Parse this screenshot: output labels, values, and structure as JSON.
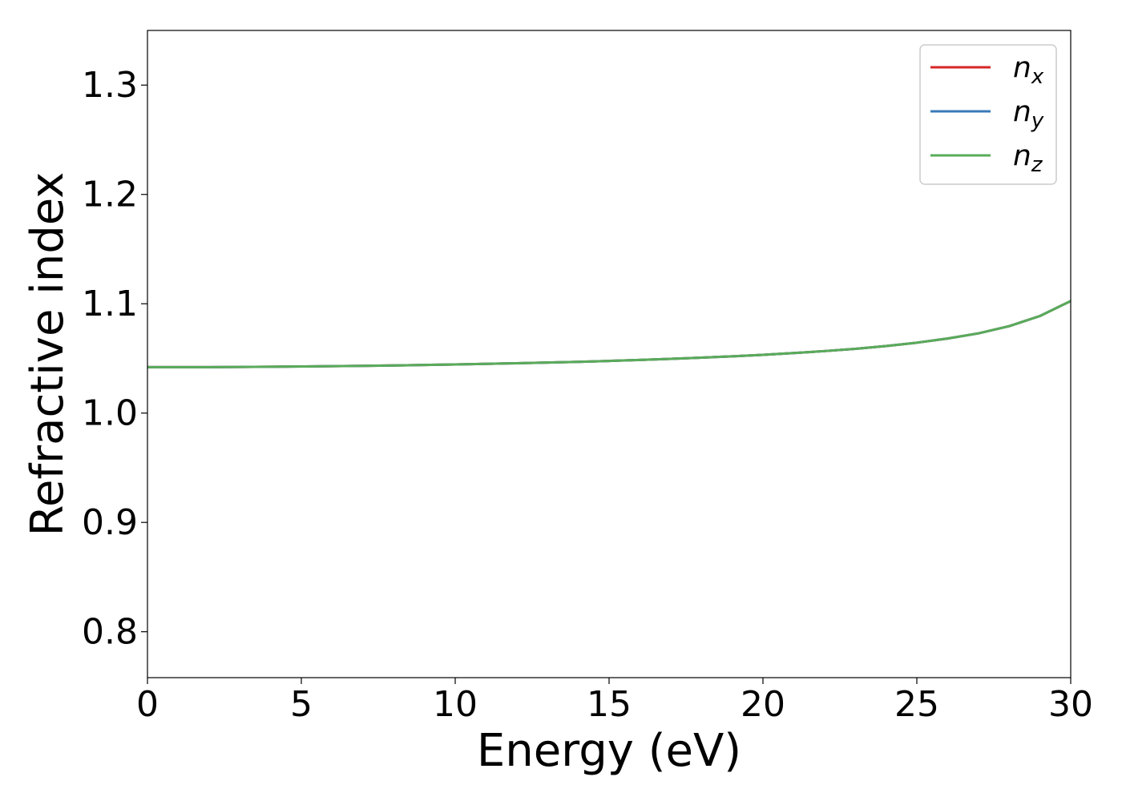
{
  "chart_data": {
    "type": "line",
    "xlabel": "Energy (eV)",
    "ylabel": "Refractive index",
    "xlim": [
      0,
      30
    ],
    "ylim": [
      0.758,
      1.35
    ],
    "xticks": [
      0,
      5,
      10,
      15,
      20,
      25,
      30
    ],
    "yticks": [
      0.8,
      0.9,
      1.0,
      1.1,
      1.2,
      1.3
    ],
    "xtick_labels": [
      "0",
      "5",
      "10",
      "15",
      "20",
      "25",
      "30"
    ],
    "ytick_labels": [
      "0.8",
      "0.9",
      "1.0",
      "1.1",
      "1.2",
      "1.3"
    ],
    "grid": false,
    "legend_position": "top-right",
    "x": [
      0,
      1,
      2,
      3,
      4,
      5,
      6,
      7,
      8,
      9,
      10,
      11,
      12,
      13,
      14,
      15,
      16,
      17,
      18,
      19,
      20,
      21,
      22,
      23,
      24,
      25,
      26,
      27,
      28,
      29,
      30
    ],
    "series": [
      {
        "name": "n",
        "subscript": "x",
        "color": "#d62728",
        "values": [
          1.042,
          1.042,
          1.042,
          1.0422,
          1.0424,
          1.0426,
          1.0429,
          1.0432,
          1.0436,
          1.044,
          1.0445,
          1.045,
          1.0456,
          1.0462,
          1.0469,
          1.0477,
          1.0486,
          1.0496,
          1.0507,
          1.0519,
          1.0533,
          1.0549,
          1.0567,
          1.0588,
          1.0613,
          1.0644,
          1.0682,
          1.0729,
          1.0795,
          1.0888,
          1.1025
        ]
      },
      {
        "name": "n",
        "subscript": "y",
        "color": "#3a7ab8",
        "values": [
          1.042,
          1.042,
          1.042,
          1.0422,
          1.0424,
          1.0426,
          1.0429,
          1.0432,
          1.0436,
          1.044,
          1.0445,
          1.045,
          1.0456,
          1.0462,
          1.0469,
          1.0477,
          1.0486,
          1.0496,
          1.0507,
          1.0519,
          1.0533,
          1.0549,
          1.0567,
          1.0588,
          1.0613,
          1.0644,
          1.0682,
          1.0729,
          1.0795,
          1.0888,
          1.1025
        ]
      },
      {
        "name": "n",
        "subscript": "z",
        "color": "#5aab5a",
        "values": [
          1.042,
          1.042,
          1.042,
          1.0422,
          1.0424,
          1.0426,
          1.0429,
          1.0432,
          1.0436,
          1.044,
          1.0445,
          1.045,
          1.0456,
          1.0462,
          1.0469,
          1.0477,
          1.0486,
          1.0496,
          1.0507,
          1.0519,
          1.0533,
          1.0549,
          1.0567,
          1.0588,
          1.0613,
          1.0644,
          1.0682,
          1.0729,
          1.0795,
          1.0888,
          1.1025
        ]
      }
    ]
  }
}
